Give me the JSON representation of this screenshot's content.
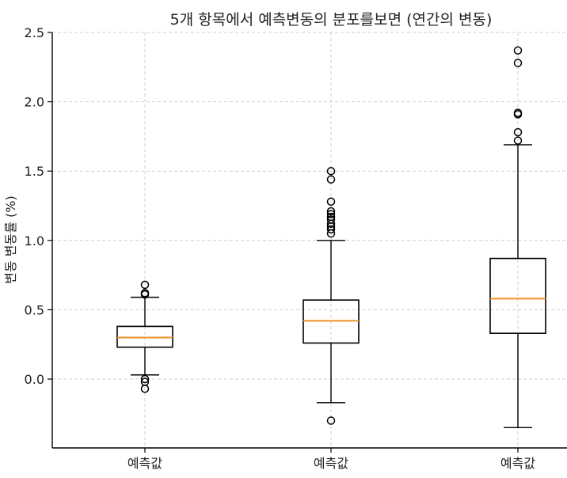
{
  "chart_data": {
    "type": "box",
    "title": "5개 항목에서 예측변동의 분포를보면 (연간의 변동)",
    "xlabel": "",
    "ylabel": "변동 변동률 (%)",
    "ylim": [
      -0.5,
      2.5
    ],
    "yticks": [
      0.0,
      0.5,
      1.0,
      1.5,
      2.0,
      2.5
    ],
    "ytick_labels": [
      "0.0",
      "0.5",
      "1.0",
      "1.5",
      "2.0",
      "2.5"
    ],
    "grid": true,
    "categories": [
      "예측값",
      "예측값",
      "예측값"
    ],
    "boxes": [
      {
        "whisker_low": 0.03,
        "q1": 0.23,
        "median": 0.3,
        "q3": 0.38,
        "whisker_high": 0.59,
        "fliers": [
          -0.07,
          -0.02,
          0.0,
          0.61,
          0.62,
          0.68
        ]
      },
      {
        "whisker_low": -0.17,
        "q1": 0.26,
        "median": 0.42,
        "q3": 0.57,
        "whisker_high": 1.0,
        "fliers": [
          -0.3,
          1.05,
          1.08,
          1.1,
          1.12,
          1.15,
          1.17,
          1.19,
          1.21,
          1.28,
          1.44,
          1.5
        ]
      },
      {
        "whisker_low": -0.35,
        "q1": 0.33,
        "median": 0.58,
        "q3": 0.87,
        "whisker_high": 1.69,
        "fliers": [
          1.72,
          1.78,
          1.91,
          1.92,
          2.28,
          2.37
        ]
      }
    ],
    "colors": {
      "median": "#f0902a",
      "box": "#000000",
      "grid": "#cfcfcf"
    }
  }
}
